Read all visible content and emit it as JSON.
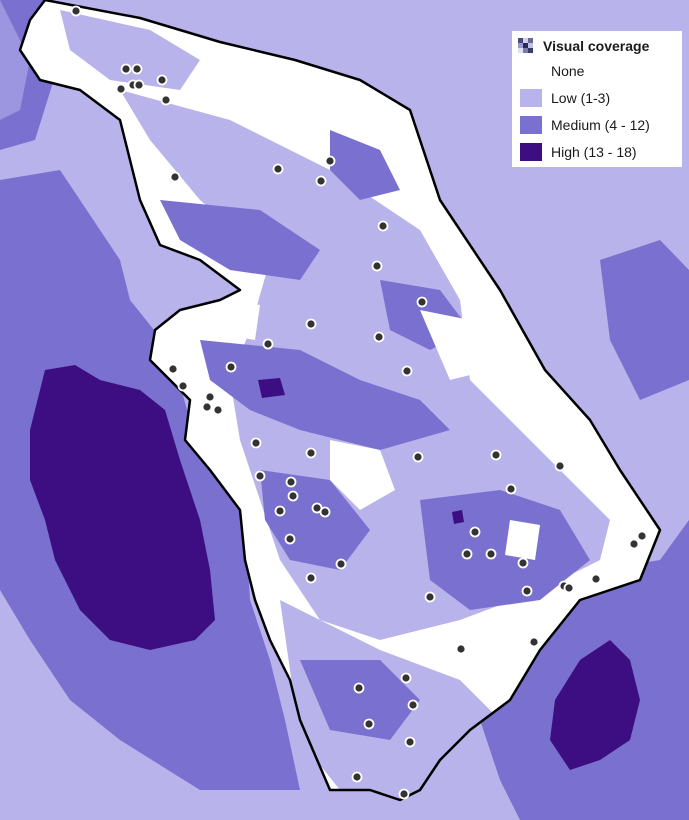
{
  "legend": {
    "title": "Visual coverage",
    "icon": "raster-layer-icon",
    "items": [
      {
        "label": "None",
        "color": "#ffffff"
      },
      {
        "label": "Low (1-3)",
        "color": "#b8b3ea"
      },
      {
        "label": "Medium (4 - 12)",
        "color": "#7a70cf"
      },
      {
        "label": "High (13 - 18)",
        "color": "#3d0d82"
      }
    ]
  },
  "colors": {
    "none": "#ffffff",
    "low": "#b8b3ea",
    "medium": "#7a70cf",
    "high": "#3d0d82",
    "boundary": "#000000",
    "point_fill": "#333333",
    "point_stroke": "#ffffff"
  },
  "map": {
    "layer": "visual-coverage-raster",
    "boundary": "study-area-outline",
    "observation_points": 75
  }
}
